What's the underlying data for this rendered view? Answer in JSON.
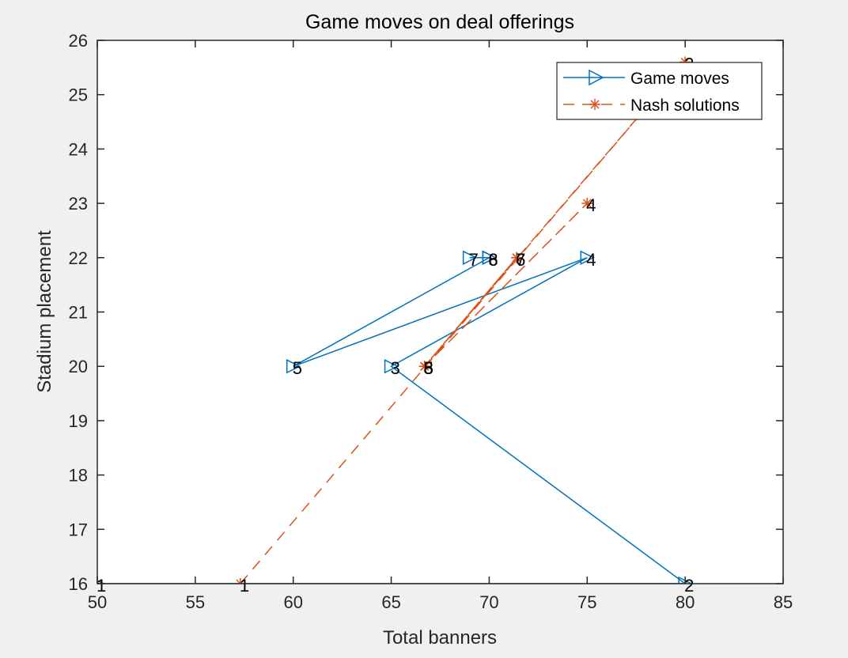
{
  "chart_data": {
    "type": "line",
    "title": "Game moves on deal offerings",
    "xlabel": "Total banners",
    "ylabel": "Stadium placement",
    "xlim": [
      50,
      85
    ],
    "ylim": [
      16,
      26
    ],
    "xticks": [
      50,
      55,
      60,
      65,
      70,
      75,
      80,
      85
    ],
    "yticks": [
      16,
      17,
      18,
      19,
      20,
      21,
      22,
      23,
      24,
      25,
      26
    ],
    "grid": false,
    "legend_position": "top-right",
    "series": [
      {
        "name": "Game moves",
        "color": "#0072bd",
        "line_style": "solid",
        "marker": "triangle-right",
        "x": [
          50,
          80,
          65,
          75,
          60,
          70,
          69,
          70
        ],
        "y": [
          16,
          16,
          20,
          22,
          20,
          22,
          22,
          22
        ],
        "labels": [
          "1",
          "2",
          "3",
          "4",
          "5",
          "6",
          "7",
          "8"
        ]
      },
      {
        "name": "Nash solutions",
        "color": "#d95319",
        "line_style": "dashed",
        "marker": "asterisk",
        "x": [
          57.3,
          80,
          66.7,
          75,
          66.7,
          71.4,
          71.4,
          66.7
        ],
        "y": [
          16,
          25.6,
          20,
          23,
          20,
          22,
          22,
          20
        ],
        "labels": [
          "1",
          "2",
          "3",
          "4",
          "5",
          "6",
          "7",
          "8"
        ]
      }
    ]
  }
}
